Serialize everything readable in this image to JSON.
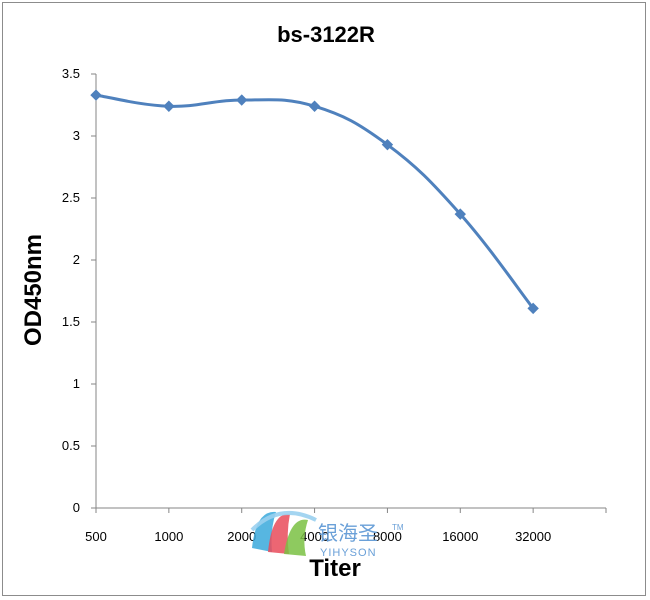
{
  "chart_data": {
    "type": "line",
    "title": "bs-3122R",
    "xlabel": "Titer",
    "ylabel": "OD450nm",
    "categories": [
      "500",
      "1000",
      "2000",
      "4000",
      "8000",
      "16000",
      "32000"
    ],
    "series": [
      {
        "values": [
          3.33,
          3.24,
          3.29,
          3.24,
          2.93,
          2.37,
          1.61
        ]
      }
    ],
    "ylim": [
      0,
      3.5
    ],
    "yticks": [
      "0",
      "0.5",
      "1",
      "1.5",
      "2",
      "2.5",
      "3",
      "3.5"
    ],
    "grid": false,
    "legend": "none",
    "line_color": "#4f81bd",
    "marker": "diamond"
  },
  "watermark": {
    "name_cn": "银海圣",
    "name_en": "YIHYSON",
    "trademark": "TM"
  }
}
